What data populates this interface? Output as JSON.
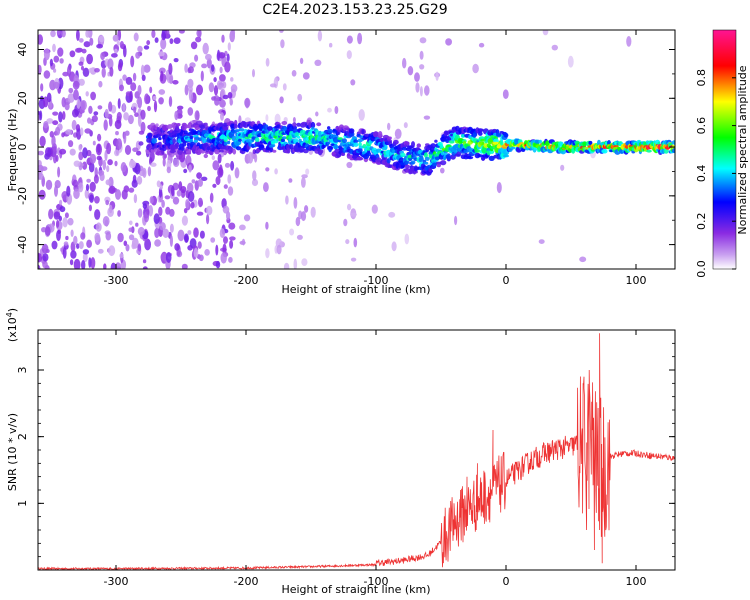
{
  "chart_data": [
    {
      "type": "heatmap",
      "title": "C2E4.2023.153.23.25.G29",
      "xlabel": "Height of straight line (km)",
      "ylabel": "Frequency (Hz)",
      "xlim": [
        -360,
        130
      ],
      "ylim": [
        -50,
        48
      ],
      "xticks": [
        -300,
        -200,
        -100,
        0,
        100
      ],
      "yticks": [
        -40,
        -20,
        0,
        20,
        40
      ],
      "colorbar": {
        "label": "Normalized spectral amplitude",
        "range": [
          0,
          1
        ],
        "ticks": [
          0.0,
          0.2,
          0.4,
          0.6,
          0.8
        ],
        "colors": [
          "#ffffff",
          "#8a2be2",
          "#0000ff",
          "#00ffff",
          "#00ff00",
          "#ffff00",
          "#ff0000",
          "#ff1493"
        ]
      },
      "ridge": {
        "x": [
          -270,
          -210,
          -150,
          -100,
          -80,
          -60,
          -40,
          -20,
          0,
          50,
          70,
          100,
          130
        ],
        "frequency": [
          3,
          4,
          4,
          0,
          -4,
          -5,
          2,
          1,
          1,
          0,
          0,
          0,
          0
        ],
        "amplitude": [
          0.3,
          0.45,
          0.5,
          0.45,
          0.4,
          0.5,
          0.55,
          0.6,
          0.7,
          0.8,
          0.75,
          0.85,
          0.85
        ]
      }
    },
    {
      "type": "line",
      "xlabel": "Height of straight line (km)",
      "ylabel": "SNR (10 * v/v)",
      "multiplier": "(x10",
      "multiplier_exp": "4",
      "multiplier_close": ")",
      "xlim": [
        -360,
        130
      ],
      "ylim": [
        0,
        3.6
      ],
      "xticks": [
        -300,
        -200,
        -100,
        0,
        100
      ],
      "yticks": [
        1,
        2,
        3
      ],
      "series": [
        {
          "color": "#ee3333",
          "x": [
            -360,
            -300,
            -200,
            -150,
            -100,
            -80,
            -60,
            -50,
            -40,
            -30,
            -20,
            -10,
            0,
            10,
            20,
            30,
            40,
            50,
            55,
            60,
            65,
            70,
            75,
            80,
            90,
            100,
            110,
            120,
            130
          ],
          "values": [
            0.02,
            0.02,
            0.03,
            0.05,
            0.08,
            0.12,
            0.2,
            0.4,
            0.7,
            0.9,
            1.05,
            1.2,
            1.35,
            1.5,
            1.65,
            1.75,
            1.82,
            1.85,
            1.9,
            1.8,
            1.95,
            1.6,
            1.5,
            1.7,
            1.75,
            1.75,
            1.72,
            1.7,
            1.68
          ],
          "spikes": [
            {
              "x": -40,
              "value": 1.0
            },
            {
              "x": -35,
              "value": 1.2
            },
            {
              "x": -30,
              "value": 1.4
            },
            {
              "x": -22,
              "value": 1.6
            },
            {
              "x": -10,
              "value": 2.1
            },
            {
              "x": 60,
              "value": 2.9
            },
            {
              "x": 64,
              "value": 3.0
            },
            {
              "x": 72,
              "value": 3.55
            },
            {
              "x": 75,
              "value": 2.3
            }
          ],
          "dips": [
            {
              "x": 62,
              "value": 0.6
            },
            {
              "x": 68,
              "value": 0.3
            },
            {
              "x": 74,
              "value": 0.1
            },
            {
              "x": 76,
              "value": 0.5
            }
          ]
        }
      ]
    }
  ]
}
